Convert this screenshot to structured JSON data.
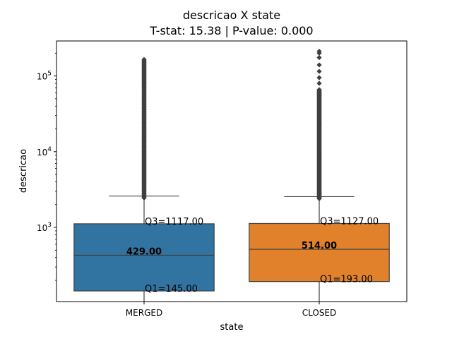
{
  "chart_data": {
    "type": "box",
    "title": "descricao X state",
    "subtitle": "T-stat: 15.38 | P-value: 0.000",
    "xlabel": "state",
    "ylabel": "descricao",
    "yscale": "log",
    "ylim": [
      105,
      290000
    ],
    "y_ticks": [
      {
        "value": 1000,
        "base": "10",
        "exp": "3"
      },
      {
        "value": 10000,
        "base": "10",
        "exp": "4"
      },
      {
        "value": 100000,
        "base": "10",
        "exp": "5"
      }
    ],
    "grid": false,
    "categories": [
      "MERGED",
      "CLOSED"
    ],
    "series": [
      {
        "category": "MERGED",
        "color": "#3274a1",
        "q1": 145,
        "median": 429,
        "q3": 1117,
        "whisker_high": 2600,
        "whisker_low": 105,
        "outlier_min": 2450,
        "outlier_max": 165000,
        "sparse_outliers": [],
        "median_label": "429.00",
        "q1_label": "Q1=145.00",
        "q3_label": "Q3=1117.00"
      },
      {
        "category": "CLOSED",
        "color": "#e1812c",
        "q1": 193,
        "median": 514,
        "q3": 1127,
        "whisker_high": 2550,
        "whisker_low": 105,
        "outlier_min": 2400,
        "outlier_max": 66000,
        "sparse_outliers": [
          80000,
          95000,
          115000,
          140000,
          175000,
          200000,
          212000
        ],
        "median_label": "514.00",
        "q1_label": "Q1=193.00",
        "q3_label": "Q3=1127.00"
      }
    ]
  }
}
